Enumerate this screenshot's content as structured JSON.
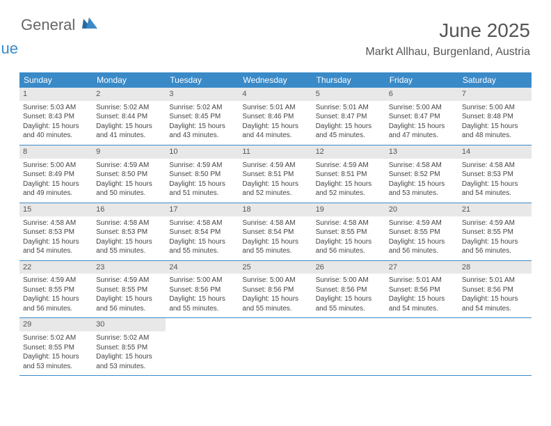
{
  "brand": {
    "part1": "General",
    "part2": "Blue"
  },
  "header": {
    "title": "June 2025",
    "location": "Markt Allhau, Burgenland, Austria"
  },
  "colors": {
    "header_bg": "#3a8ac8",
    "header_text": "#ffffff",
    "daynum_bg": "#e8e8e8",
    "border": "#3a8ac8"
  },
  "day_names": [
    "Sunday",
    "Monday",
    "Tuesday",
    "Wednesday",
    "Thursday",
    "Friday",
    "Saturday"
  ],
  "weeks": [
    [
      {
        "n": "1",
        "sr": "Sunrise: 5:03 AM",
        "ss": "Sunset: 8:43 PM",
        "d1": "Daylight: 15 hours",
        "d2": "and 40 minutes."
      },
      {
        "n": "2",
        "sr": "Sunrise: 5:02 AM",
        "ss": "Sunset: 8:44 PM",
        "d1": "Daylight: 15 hours",
        "d2": "and 41 minutes."
      },
      {
        "n": "3",
        "sr": "Sunrise: 5:02 AM",
        "ss": "Sunset: 8:45 PM",
        "d1": "Daylight: 15 hours",
        "d2": "and 43 minutes."
      },
      {
        "n": "4",
        "sr": "Sunrise: 5:01 AM",
        "ss": "Sunset: 8:46 PM",
        "d1": "Daylight: 15 hours",
        "d2": "and 44 minutes."
      },
      {
        "n": "5",
        "sr": "Sunrise: 5:01 AM",
        "ss": "Sunset: 8:47 PM",
        "d1": "Daylight: 15 hours",
        "d2": "and 45 minutes."
      },
      {
        "n": "6",
        "sr": "Sunrise: 5:00 AM",
        "ss": "Sunset: 8:47 PM",
        "d1": "Daylight: 15 hours",
        "d2": "and 47 minutes."
      },
      {
        "n": "7",
        "sr": "Sunrise: 5:00 AM",
        "ss": "Sunset: 8:48 PM",
        "d1": "Daylight: 15 hours",
        "d2": "and 48 minutes."
      }
    ],
    [
      {
        "n": "8",
        "sr": "Sunrise: 5:00 AM",
        "ss": "Sunset: 8:49 PM",
        "d1": "Daylight: 15 hours",
        "d2": "and 49 minutes."
      },
      {
        "n": "9",
        "sr": "Sunrise: 4:59 AM",
        "ss": "Sunset: 8:50 PM",
        "d1": "Daylight: 15 hours",
        "d2": "and 50 minutes."
      },
      {
        "n": "10",
        "sr": "Sunrise: 4:59 AM",
        "ss": "Sunset: 8:50 PM",
        "d1": "Daylight: 15 hours",
        "d2": "and 51 minutes."
      },
      {
        "n": "11",
        "sr": "Sunrise: 4:59 AM",
        "ss": "Sunset: 8:51 PM",
        "d1": "Daylight: 15 hours",
        "d2": "and 52 minutes."
      },
      {
        "n": "12",
        "sr": "Sunrise: 4:59 AM",
        "ss": "Sunset: 8:51 PM",
        "d1": "Daylight: 15 hours",
        "d2": "and 52 minutes."
      },
      {
        "n": "13",
        "sr": "Sunrise: 4:58 AM",
        "ss": "Sunset: 8:52 PM",
        "d1": "Daylight: 15 hours",
        "d2": "and 53 minutes."
      },
      {
        "n": "14",
        "sr": "Sunrise: 4:58 AM",
        "ss": "Sunset: 8:53 PM",
        "d1": "Daylight: 15 hours",
        "d2": "and 54 minutes."
      }
    ],
    [
      {
        "n": "15",
        "sr": "Sunrise: 4:58 AM",
        "ss": "Sunset: 8:53 PM",
        "d1": "Daylight: 15 hours",
        "d2": "and 54 minutes."
      },
      {
        "n": "16",
        "sr": "Sunrise: 4:58 AM",
        "ss": "Sunset: 8:53 PM",
        "d1": "Daylight: 15 hours",
        "d2": "and 55 minutes."
      },
      {
        "n": "17",
        "sr": "Sunrise: 4:58 AM",
        "ss": "Sunset: 8:54 PM",
        "d1": "Daylight: 15 hours",
        "d2": "and 55 minutes."
      },
      {
        "n": "18",
        "sr": "Sunrise: 4:58 AM",
        "ss": "Sunset: 8:54 PM",
        "d1": "Daylight: 15 hours",
        "d2": "and 55 minutes."
      },
      {
        "n": "19",
        "sr": "Sunrise: 4:58 AM",
        "ss": "Sunset: 8:55 PM",
        "d1": "Daylight: 15 hours",
        "d2": "and 56 minutes."
      },
      {
        "n": "20",
        "sr": "Sunrise: 4:59 AM",
        "ss": "Sunset: 8:55 PM",
        "d1": "Daylight: 15 hours",
        "d2": "and 56 minutes."
      },
      {
        "n": "21",
        "sr": "Sunrise: 4:59 AM",
        "ss": "Sunset: 8:55 PM",
        "d1": "Daylight: 15 hours",
        "d2": "and 56 minutes."
      }
    ],
    [
      {
        "n": "22",
        "sr": "Sunrise: 4:59 AM",
        "ss": "Sunset: 8:55 PM",
        "d1": "Daylight: 15 hours",
        "d2": "and 56 minutes."
      },
      {
        "n": "23",
        "sr": "Sunrise: 4:59 AM",
        "ss": "Sunset: 8:55 PM",
        "d1": "Daylight: 15 hours",
        "d2": "and 56 minutes."
      },
      {
        "n": "24",
        "sr": "Sunrise: 5:00 AM",
        "ss": "Sunset: 8:56 PM",
        "d1": "Daylight: 15 hours",
        "d2": "and 55 minutes."
      },
      {
        "n": "25",
        "sr": "Sunrise: 5:00 AM",
        "ss": "Sunset: 8:56 PM",
        "d1": "Daylight: 15 hours",
        "d2": "and 55 minutes."
      },
      {
        "n": "26",
        "sr": "Sunrise: 5:00 AM",
        "ss": "Sunset: 8:56 PM",
        "d1": "Daylight: 15 hours",
        "d2": "and 55 minutes."
      },
      {
        "n": "27",
        "sr": "Sunrise: 5:01 AM",
        "ss": "Sunset: 8:56 PM",
        "d1": "Daylight: 15 hours",
        "d2": "and 54 minutes."
      },
      {
        "n": "28",
        "sr": "Sunrise: 5:01 AM",
        "ss": "Sunset: 8:56 PM",
        "d1": "Daylight: 15 hours",
        "d2": "and 54 minutes."
      }
    ],
    [
      {
        "n": "29",
        "sr": "Sunrise: 5:02 AM",
        "ss": "Sunset: 8:55 PM",
        "d1": "Daylight: 15 hours",
        "d2": "and 53 minutes."
      },
      {
        "n": "30",
        "sr": "Sunrise: 5:02 AM",
        "ss": "Sunset: 8:55 PM",
        "d1": "Daylight: 15 hours",
        "d2": "and 53 minutes."
      },
      {
        "empty": true
      },
      {
        "empty": true
      },
      {
        "empty": true
      },
      {
        "empty": true
      },
      {
        "empty": true
      }
    ]
  ]
}
